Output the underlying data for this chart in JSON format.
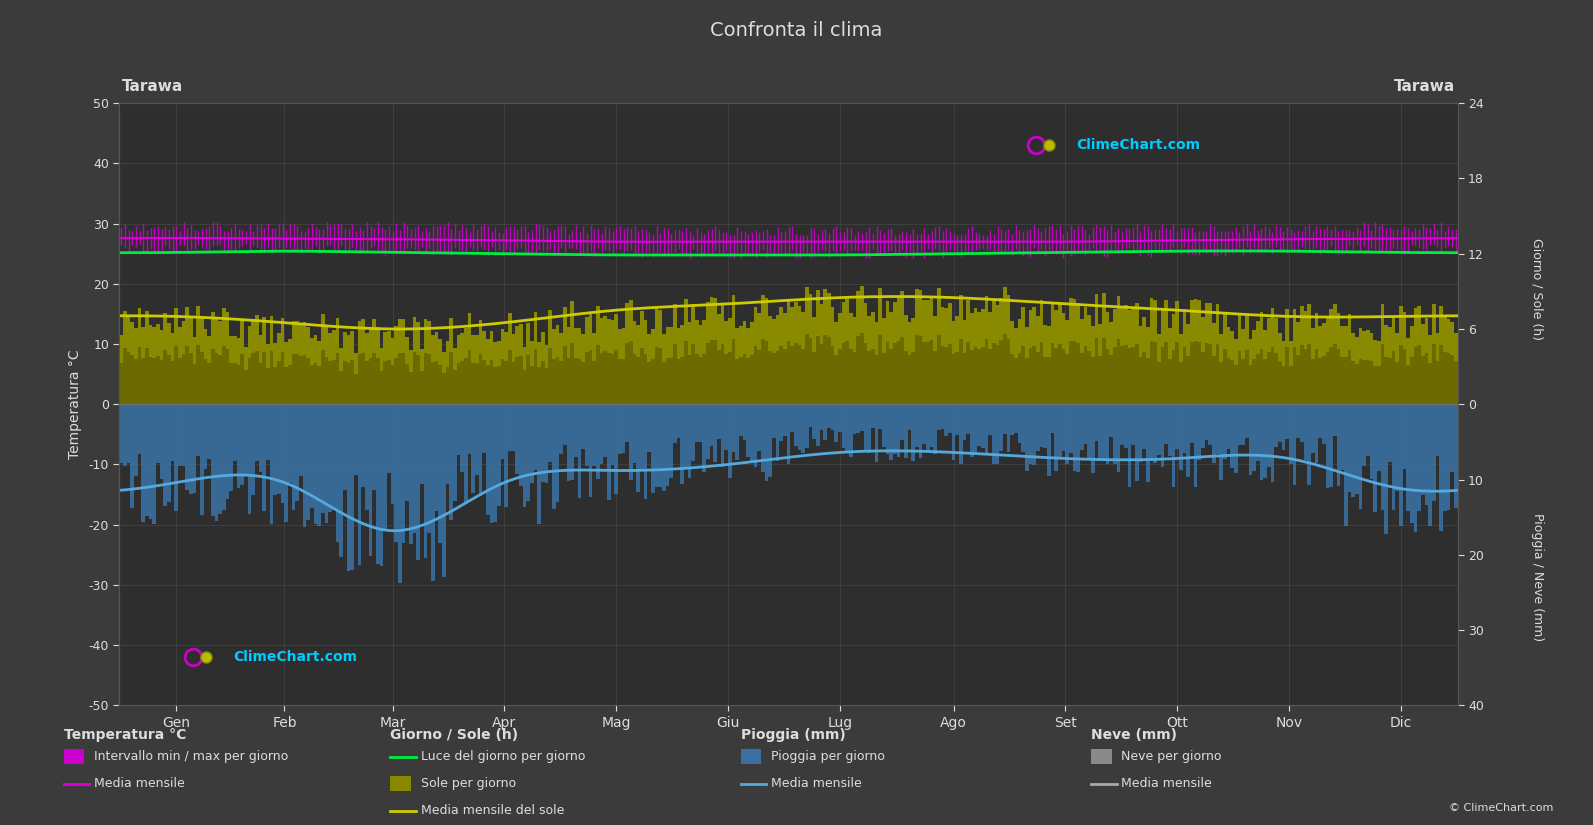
{
  "title": "Confronta il clima",
  "location": "Tarawa",
  "bg_color": "#3b3b3b",
  "plot_bg_color": "#2e2e2e",
  "grid_color": "#555555",
  "text_color": "#dddddd",
  "ylim_temp": [
    -50,
    50
  ],
  "months": [
    "Gen",
    "Feb",
    "Mar",
    "Apr",
    "Mag",
    "Giu",
    "Lug",
    "Ago",
    "Set",
    "Ott",
    "Nov",
    "Dic"
  ],
  "days_per_month": [
    31,
    28,
    31,
    30,
    31,
    30,
    31,
    31,
    30,
    31,
    30,
    31
  ],
  "temp_max_monthly": [
    29.5,
    29.5,
    29.5,
    29.3,
    29.0,
    28.8,
    28.8,
    28.9,
    29.0,
    29.3,
    29.4,
    29.5
  ],
  "temp_min_monthly": [
    25.8,
    25.8,
    25.6,
    25.4,
    25.2,
    25.0,
    25.0,
    25.0,
    25.1,
    25.3,
    25.5,
    25.7
  ],
  "temp_mean_monthly": [
    27.6,
    27.5,
    27.4,
    27.2,
    27.0,
    27.0,
    27.0,
    27.0,
    27.0,
    27.2,
    27.4,
    27.5
  ],
  "daylight_hours_monthly": [
    12.1,
    12.2,
    12.1,
    12.0,
    11.9,
    11.9,
    11.9,
    12.0,
    12.1,
    12.2,
    12.2,
    12.1
  ],
  "sunshine_hours_daily_mean": [
    6.5,
    6.0,
    5.5,
    6.0,
    7.0,
    7.5,
    8.0,
    8.0,
    7.5,
    7.0,
    6.5,
    6.5
  ],
  "sunshine_mean_monthly": [
    7.0,
    6.5,
    6.0,
    6.5,
    7.5,
    8.0,
    8.5,
    8.5,
    8.0,
    7.5,
    7.0,
    7.0
  ],
  "rain_mm_daily_mean": [
    10,
    11,
    15,
    10,
    8,
    7,
    5,
    5,
    6,
    7,
    7,
    11
  ],
  "rain_mean_monthly_temp": [
    -13,
    -13,
    -21,
    -13,
    -11,
    -10,
    -8,
    -8,
    -9,
    -9,
    -9,
    -14
  ],
  "colors": {
    "temp_band_fill": "#cc00cc",
    "temp_mean_line": "#dd00dd",
    "daylight_line": "#00ee44",
    "sunshine_bar_dark": "#6b6b00",
    "sunshine_bar_light": "#aaaa00",
    "sunshine_mean_line": "#cccc00",
    "rain_bar": "#3a6fa0",
    "rain_mean_line": "#55aadd",
    "snow_bar": "#8a8a8a",
    "snow_mean_line": "#aaaaaa"
  },
  "sun_axis_ticks": [
    0,
    6,
    12,
    18,
    24
  ],
  "rain_axis_ticks": [
    0,
    10,
    20,
    30,
    40
  ]
}
